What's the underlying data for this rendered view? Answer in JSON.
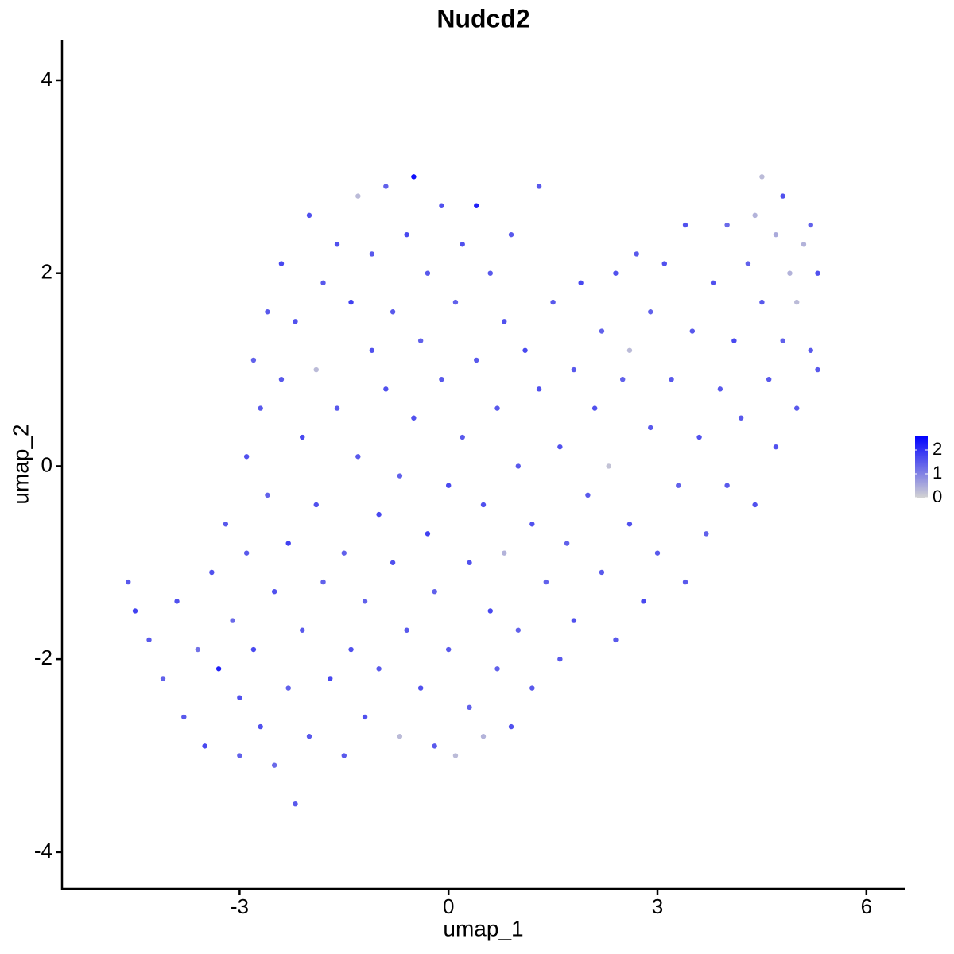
{
  "chart_data": {
    "type": "scatter",
    "title": "Nudcd2",
    "x_label": "umap_1",
    "y_label": "umap_2",
    "xlim": [
      -5.55,
      6.55
    ],
    "ylim": [
      -4.38,
      4.42
    ],
    "xticks": [
      -3,
      0,
      3,
      6
    ],
    "yticks": [
      -4,
      -2,
      0,
      2,
      4
    ],
    "grid": false,
    "colorbar": {
      "lim": [
        0,
        2.6
      ],
      "ticks": [
        0,
        1,
        2
      ],
      "low": "#d3d3d3",
      "high": "#0000ff"
    },
    "series": [
      {
        "x": [
          -4.6,
          -4.5,
          -4.3,
          -4.1,
          -3.9,
          -3.8,
          -3.6,
          -3.5,
          -3.4,
          -3.3,
          -3.2,
          -3.1,
          -3.0,
          -3.0,
          -2.9,
          -2.9,
          -2.8,
          -2.8,
          -2.7,
          -2.7,
          -2.6,
          -2.6,
          -2.5,
          -2.5,
          -2.4,
          -2.4,
          -2.3,
          -2.3,
          -2.2,
          -2.2,
          -2.1,
          -2.1,
          -2.0,
          -2.0,
          -1.9,
          -1.9,
          -1.8,
          -1.8,
          -1.7,
          -1.6,
          -1.6,
          -1.5,
          -1.5,
          -1.4,
          -1.4,
          -1.3,
          -1.3,
          -1.2,
          -1.2,
          -1.1,
          -1.1,
          -1.0,
          -1.0,
          -0.9,
          -0.9,
          -0.8,
          -0.8,
          -0.7,
          -0.7,
          -0.6,
          -0.6,
          -0.5,
          -0.5,
          -0.4,
          -0.4,
          -0.3,
          -0.3,
          -0.2,
          -0.2,
          -0.1,
          -0.1,
          0.0,
          0.0,
          0.1,
          0.1,
          0.2,
          0.2,
          0.3,
          0.3,
          0.4,
          0.4,
          0.5,
          0.5,
          0.6,
          0.6,
          0.7,
          0.7,
          0.8,
          0.8,
          0.9,
          0.9,
          1.0,
          1.0,
          1.1,
          1.2,
          1.2,
          1.3,
          1.3,
          1.4,
          1.5,
          1.6,
          1.6,
          1.7,
          1.8,
          1.8,
          1.9,
          2.0,
          2.1,
          2.2,
          2.2,
          2.3,
          2.4,
          2.4,
          2.5,
          2.6,
          2.6,
          2.7,
          2.8,
          2.9,
          2.9,
          3.0,
          3.1,
          3.2,
          3.3,
          3.4,
          3.4,
          3.5,
          3.6,
          3.7,
          3.8,
          3.9,
          4.0,
          4.0,
          4.1,
          4.2,
          4.3,
          4.4,
          4.4,
          4.5,
          4.5,
          4.6,
          4.7,
          4.7,
          4.8,
          4.8,
          4.9,
          5.0,
          5.0,
          5.1,
          5.2,
          5.2,
          5.3,
          5.3
        ],
        "values": [
          -1.2,
          -1.5,
          -1.8,
          -2.2,
          -1.4,
          -2.6,
          -1.9,
          -2.9,
          -1.1,
          -2.1,
          -0.6,
          -1.6,
          -2.4,
          -3.0,
          0.1,
          -0.9,
          1.1,
          -1.9,
          0.6,
          -2.7,
          1.6,
          -0.3,
          -1.3,
          -3.1,
          2.1,
          0.9,
          -0.8,
          -2.3,
          -3.5,
          1.5,
          0.3,
          -1.7,
          2.6,
          -2.8,
          1.0,
          -0.4,
          1.9,
          -1.2,
          -2.2,
          2.3,
          0.6,
          -0.9,
          -3.0,
          1.7,
          -1.9,
          2.8,
          0.1,
          -1.4,
          -2.6,
          2.2,
          1.2,
          -0.5,
          -2.1,
          2.9,
          0.8,
          1.6,
          -1.0,
          -2.8,
          -0.1,
          2.4,
          -1.7,
          3.0,
          0.5,
          1.3,
          -2.3,
          -0.7,
          2.0,
          -1.3,
          -2.9,
          2.7,
          0.9,
          -0.2,
          -1.9,
          1.7,
          -3.0,
          2.3,
          0.3,
          -1.0,
          -2.5,
          2.7,
          1.1,
          -0.4,
          -2.8,
          2.0,
          -1.5,
          0.6,
          -2.1,
          1.5,
          -0.9,
          2.4,
          -2.7,
          0.0,
          -1.7,
          1.2,
          -0.6,
          -2.3,
          2.9,
          0.8,
          -1.2,
          1.7,
          0.2,
          -2.0,
          -0.8,
          1.0,
          -1.6,
          1.9,
          -0.3,
          0.6,
          1.4,
          -1.1,
          0.0,
          2.0,
          -1.8,
          0.9,
          1.2,
          -0.6,
          2.2,
          -1.4,
          0.4,
          1.6,
          -0.9,
          2.1,
          0.9,
          -0.2,
          2.5,
          -1.2,
          1.4,
          0.3,
          -0.7,
          1.9,
          0.8,
          2.5,
          -0.2,
          1.3,
          0.5,
          2.1,
          2.6,
          -0.4,
          1.7,
          3.0,
          0.9,
          2.4,
          0.2,
          1.3,
          2.8,
          2.0,
          0.6,
          1.7,
          2.3,
          1.2,
          2.5,
          2.0,
          1.0
        ],
        "expression": [
          1.5,
          1.8,
          1.5,
          1.4,
          1.6,
          1.5,
          1.2,
          1.7,
          1.6,
          2.2,
          1.5,
          1.3,
          1.6,
          1.4,
          1.6,
          1.5,
          1.4,
          1.7,
          1.5,
          1.6,
          1.5,
          1.4,
          1.6,
          1.3,
          1.7,
          1.5,
          1.8,
          1.4,
          1.5,
          1.6,
          1.7,
          1.5,
          1.6,
          1.5,
          0.3,
          1.6,
          1.5,
          1.4,
          1.7,
          1.6,
          1.5,
          1.4,
          1.5,
          1.8,
          1.6,
          0.3,
          1.5,
          1.4,
          1.6,
          1.5,
          1.6,
          1.7,
          1.5,
          1.4,
          1.6,
          1.5,
          1.6,
          0.3,
          1.4,
          1.7,
          1.5,
          2.4,
          1.6,
          1.4,
          1.6,
          1.8,
          1.5,
          1.4,
          1.5,
          1.6,
          1.5,
          1.7,
          1.5,
          1.4,
          0.3,
          1.6,
          1.5,
          1.6,
          1.4,
          2.2,
          1.5,
          1.6,
          0.4,
          1.5,
          1.7,
          1.5,
          1.4,
          1.6,
          0.4,
          1.5,
          1.6,
          1.5,
          1.4,
          1.7,
          1.6,
          1.5,
          1.5,
          1.6,
          1.4,
          1.5,
          1.6,
          1.5,
          1.4,
          1.5,
          1.6,
          1.7,
          1.5,
          1.6,
          1.4,
          1.5,
          0.2,
          1.6,
          1.5,
          1.4,
          0.3,
          1.6,
          1.5,
          1.7,
          1.5,
          1.4,
          1.5,
          1.6,
          1.5,
          1.4,
          1.6,
          1.5,
          1.5,
          1.6,
          1.4,
          1.6,
          1.5,
          1.3,
          1.5,
          1.7,
          1.5,
          1.4,
          0.4,
          1.6,
          1.5,
          0.3,
          1.5,
          0.5,
          1.6,
          1.4,
          1.6,
          0.4,
          1.5,
          0.3,
          0.4,
          1.5,
          1.4,
          1.6,
          1.5
        ]
      }
    ]
  }
}
